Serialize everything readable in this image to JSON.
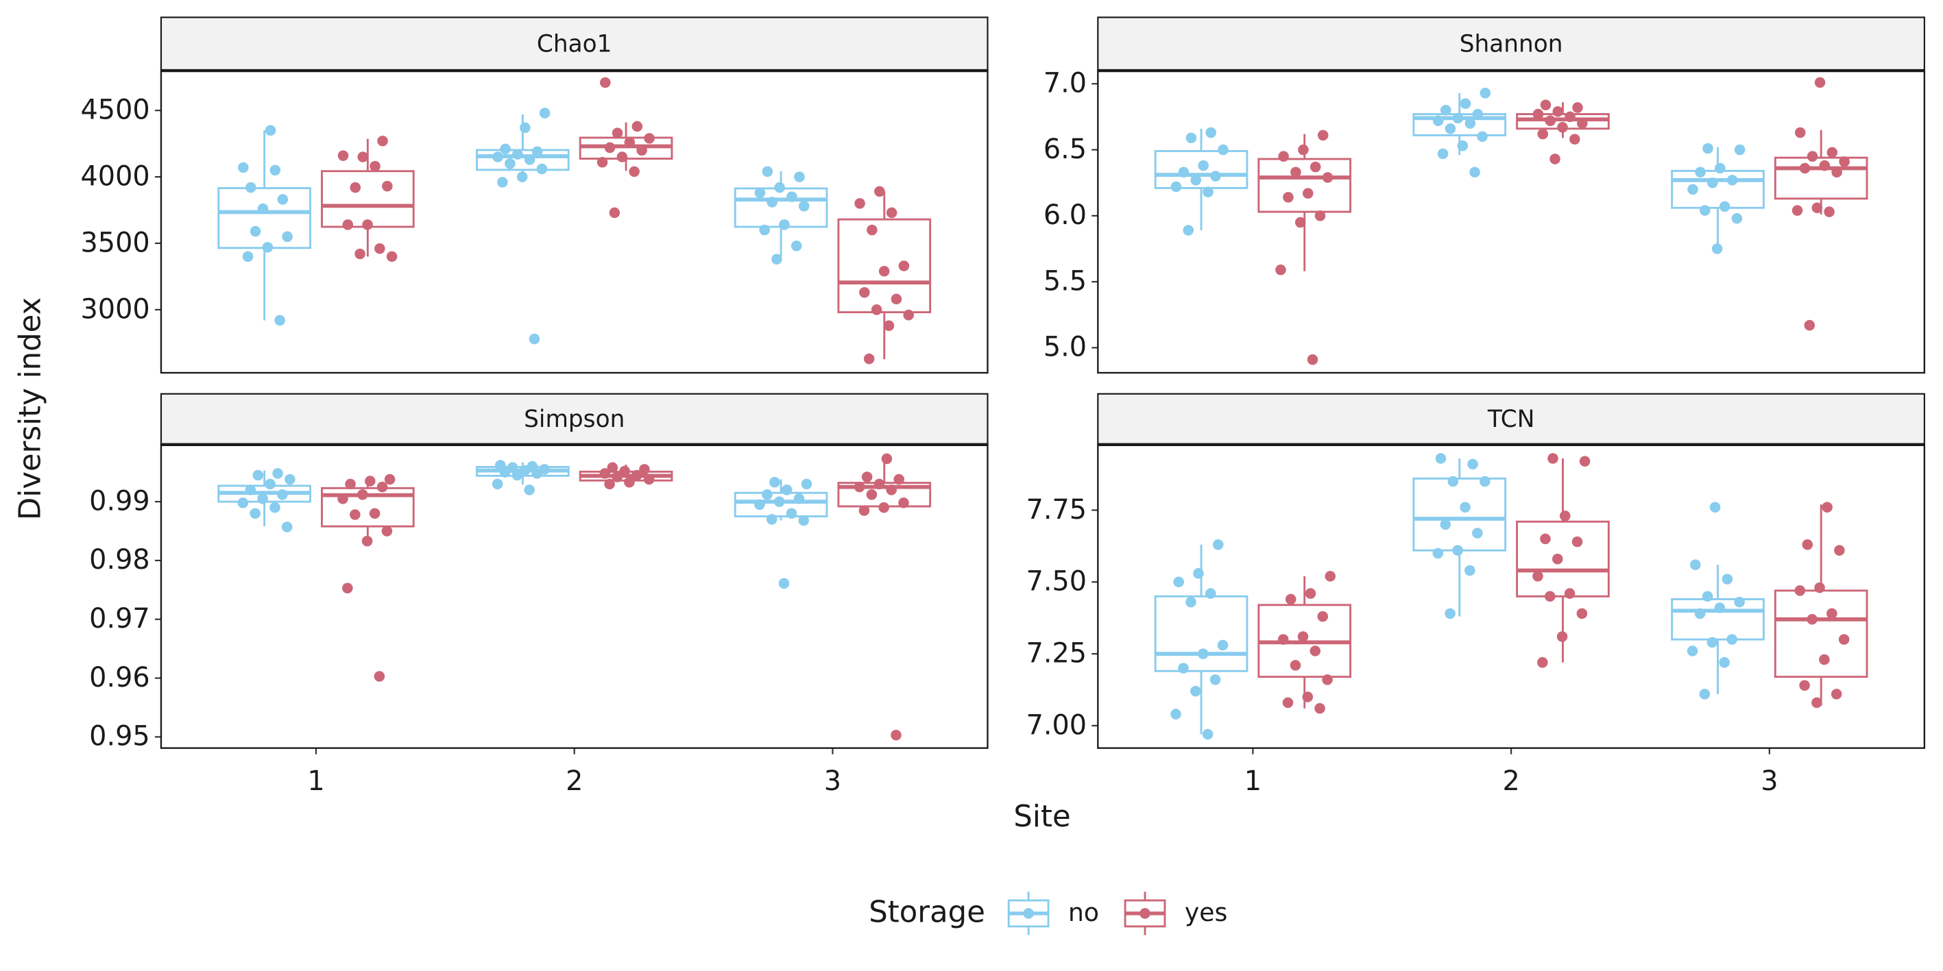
{
  "x_label": "Site",
  "y_label": "Diversity index",
  "categories": [
    "1",
    "2",
    "3"
  ],
  "legend": {
    "title": "Storage",
    "series": [
      {
        "name": "no",
        "color": "#88CCEE"
      },
      {
        "name": "yes",
        "color": "#CC6677"
      }
    ]
  },
  "chart_data": [
    {
      "type": "box",
      "title": "Chao1",
      "ylim": [
        2525,
        4800
      ],
      "yticks": [
        3000,
        3500,
        4000,
        4500
      ],
      "series": [
        {
          "boxes": [
            {
              "low": 2920,
              "q1": 3465,
              "median": 3735,
              "q3": 3915,
              "high": 4350
            },
            {
              "low": 3960,
              "q1": 4053,
              "median": 4155,
              "q3": 4202,
              "high": 4470
            },
            {
              "low": 3400,
              "q1": 3624,
              "median": 3829,
              "q3": 3913,
              "high": 4043
            }
          ],
          "points": [
            [
              4350,
              3920,
              3830,
              3760,
              4070,
              4050,
              3590,
              3550,
              3470,
              3400,
              2920
            ],
            [
              4480,
              4370,
              4210,
              4190,
              4170,
              4150,
              4130,
              4100,
              4060,
              4000,
              3960,
              2780
            ],
            [
              4040,
              4000,
              3920,
              3880,
              3850,
              3810,
              3780,
              3640,
              3600,
              3480,
              3380
            ]
          ]
        },
        {
          "boxes": [
            {
              "low": 3400,
              "q1": 3624,
              "median": 3782,
              "q3": 4043,
              "high": 4286
            },
            {
              "low": 4045,
              "q1": 4137,
              "median": 4230,
              "q3": 4295,
              "high": 4410
            },
            {
              "low": 2627,
              "q1": 2981,
              "median": 3205,
              "q3": 3680,
              "high": 3890
            }
          ],
          "points": [
            [
              4270,
              4150,
              4160,
              4080,
              3920,
              3930,
              3640,
              3640,
              3460,
              3420,
              3400
            ],
            [
              4710,
              4380,
              4330,
              4290,
              4260,
              4220,
              4200,
              4150,
              4110,
              4040,
              3730
            ],
            [
              3890,
              3800,
              3730,
              3600,
              3330,
              3290,
              3130,
              3080,
              3000,
              2960,
              2880,
              2630
            ]
          ]
        }
      ]
    },
    {
      "type": "box",
      "title": "Shannon",
      "ylim": [
        4.81,
        7.1
      ],
      "yticks": [
        {
          "value": 5,
          "label": "5.0"
        },
        5.5,
        {
          "value": 6,
          "label": "6.0"
        },
        6.5,
        {
          "value": 7,
          "label": "7.0"
        }
      ],
      "series": [
        {
          "boxes": [
            {
              "low": 5.89,
              "q1": 6.21,
              "median": 6.31,
              "q3": 6.49,
              "high": 6.66
            },
            {
              "low": 6.46,
              "q1": 6.61,
              "median": 6.74,
              "q3": 6.77,
              "high": 6.93
            },
            {
              "low": 5.76,
              "q1": 6.06,
              "median": 6.27,
              "q3": 6.34,
              "high": 6.52
            }
          ],
          "points": [
            [
              6.63,
              6.59,
              6.5,
              6.38,
              6.33,
              6.3,
              6.27,
              6.22,
              6.18,
              5.89
            ],
            [
              6.93,
              6.85,
              6.8,
              6.77,
              6.74,
              6.72,
              6.7,
              6.66,
              6.6,
              6.53,
              6.47,
              6.33
            ],
            [
              6.51,
              6.5,
              6.36,
              6.33,
              6.27,
              6.25,
              6.2,
              6.07,
              6.04,
              5.98,
              5.75
            ]
          ]
        },
        {
          "boxes": [
            {
              "low": 5.58,
              "q1": 6.03,
              "median": 6.29,
              "q3": 6.43,
              "high": 6.62
            },
            {
              "low": 6.59,
              "q1": 6.66,
              "median": 6.73,
              "q3": 6.77,
              "high": 6.86
            },
            {
              "low": 6.01,
              "q1": 6.13,
              "median": 6.36,
              "q3": 6.44,
              "high": 6.65
            }
          ],
          "points": [
            [
              6.61,
              6.5,
              6.45,
              6.37,
              6.33,
              6.29,
              6.17,
              6.14,
              6.0,
              5.95,
              5.59,
              4.91
            ],
            [
              6.84,
              6.82,
              6.79,
              6.77,
              6.75,
              6.72,
              6.7,
              6.67,
              6.62,
              6.58,
              6.43
            ],
            [
              7.01,
              6.63,
              6.48,
              6.45,
              6.41,
              6.38,
              6.36,
              6.33,
              6.06,
              6.04,
              6.03,
              5.17
            ]
          ]
        }
      ]
    },
    {
      "type": "box",
      "title": "Simpson",
      "ylim": [
        0.9481,
        0.9997
      ],
      "yticks": [
        0.95,
        0.96,
        0.97,
        0.98,
        0.99
      ],
      "series": [
        {
          "boxes": [
            {
              "low": 0.9858,
              "q1": 0.99,
              "median": 0.9915,
              "q3": 0.9927,
              "high": 0.9953
            },
            {
              "low": 0.9929,
              "q1": 0.9944,
              "median": 0.9953,
              "q3": 0.9959,
              "high": 0.9967
            },
            {
              "low": 0.9868,
              "q1": 0.9875,
              "median": 0.99,
              "q3": 0.9915,
              "high": 0.9938
            }
          ],
          "points": [
            [
              0.9948,
              0.9945,
              0.9938,
              0.993,
              0.992,
              0.9912,
              0.9905,
              0.9898,
              0.989,
              0.988,
              0.9857
            ],
            [
              0.9962,
              0.996,
              0.9958,
              0.9955,
              0.9953,
              0.995,
              0.9948,
              0.9945,
              0.993,
              0.992
            ],
            [
              0.9933,
              0.993,
              0.992,
              0.9912,
              0.9905,
              0.99,
              0.9895,
              0.988,
              0.987,
              0.9868,
              0.9761
            ]
          ]
        },
        {
          "boxes": [
            {
              "low": 0.9833,
              "q1": 0.9858,
              "median": 0.9911,
              "q3": 0.9923,
              "high": 0.9942
            },
            {
              "low": 0.9927,
              "q1": 0.9936,
              "median": 0.9944,
              "q3": 0.9951,
              "high": 0.9963
            },
            {
              "low": 0.9883,
              "q1": 0.9892,
              "median": 0.9925,
              "q3": 0.9932,
              "high": 0.9974
            }
          ],
          "points": [
            [
              0.9938,
              0.9935,
              0.993,
              0.9925,
              0.9912,
              0.9905,
              0.988,
              0.9878,
              0.985,
              0.9833,
              0.9753,
              0.9603
            ],
            [
              0.9958,
              0.9955,
              0.9952,
              0.9948,
              0.9945,
              0.9942,
              0.9938,
              0.9933,
              0.993
            ],
            [
              0.9973,
              0.9942,
              0.9938,
              0.993,
              0.9925,
              0.992,
              0.9912,
              0.9898,
              0.989,
              0.9885,
              0.9503
            ]
          ]
        }
      ]
    },
    {
      "type": "box",
      "title": "TCN",
      "ylim": [
        6.922,
        7.978
      ],
      "yticks": [
        {
          "value": 7,
          "label": "7.00"
        },
        7.25,
        {
          "value": 7.5,
          "label": "7.50"
        },
        7.75
      ],
      "series": [
        {
          "boxes": [
            {
              "low": 6.97,
              "q1": 7.19,
              "median": 7.25,
              "q3": 7.45,
              "high": 7.63
            },
            {
              "low": 7.38,
              "q1": 7.61,
              "median": 7.72,
              "q3": 7.86,
              "high": 7.93
            },
            {
              "low": 7.11,
              "q1": 7.3,
              "median": 7.4,
              "q3": 7.44,
              "high": 7.56
            }
          ],
          "points": [
            [
              7.63,
              7.53,
              7.5,
              7.46,
              7.43,
              7.28,
              7.25,
              7.2,
              7.16,
              7.12,
              7.04,
              6.97
            ],
            [
              7.93,
              7.91,
              7.85,
              7.85,
              7.76,
              7.7,
              7.67,
              7.61,
              7.6,
              7.54,
              7.39
            ],
            [
              7.76,
              7.56,
              7.51,
              7.45,
              7.43,
              7.41,
              7.39,
              7.3,
              7.29,
              7.26,
              7.22,
              7.11
            ]
          ]
        },
        {
          "boxes": [
            {
              "low": 7.06,
              "q1": 7.17,
              "median": 7.29,
              "q3": 7.42,
              "high": 7.52
            },
            {
              "low": 7.22,
              "q1": 7.45,
              "median": 7.54,
              "q3": 7.71,
              "high": 7.93
            },
            {
              "low": 7.07,
              "q1": 7.17,
              "median": 7.37,
              "q3": 7.47,
              "high": 7.77
            }
          ],
          "points": [
            [
              7.52,
              7.46,
              7.44,
              7.38,
              7.31,
              7.3,
              7.26,
              7.21,
              7.16,
              7.1,
              7.08,
              7.06
            ],
            [
              7.93,
              7.92,
              7.73,
              7.65,
              7.64,
              7.58,
              7.52,
              7.46,
              7.45,
              7.39,
              7.31,
              7.22
            ],
            [
              7.76,
              7.63,
              7.61,
              7.48,
              7.47,
              7.39,
              7.37,
              7.3,
              7.23,
              7.14,
              7.11,
              7.08
            ]
          ]
        }
      ]
    }
  ]
}
